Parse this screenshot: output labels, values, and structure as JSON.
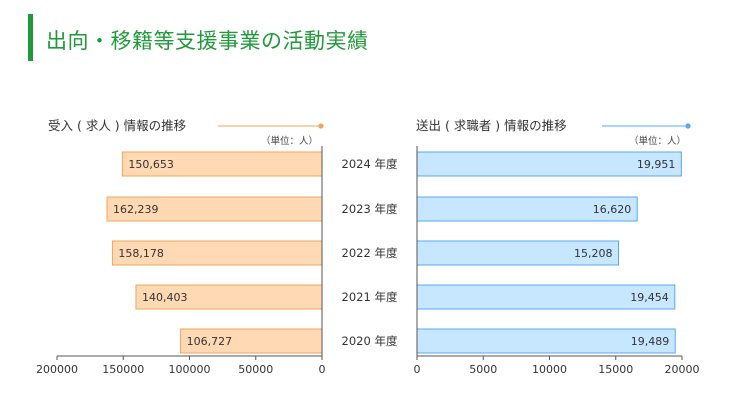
{
  "page": {
    "title": "出向・移籍等支援事業の活動実績"
  },
  "colors": {
    "accent_green": "#1f9a3b",
    "left_fill": "#ffd9b3",
    "left_stroke": "#f0a55a",
    "right_fill": "#c7e6ff",
    "right_stroke": "#5aa8f0"
  },
  "chart_data": [
    {
      "type": "bar",
      "orientation": "horizontal",
      "direction": "right-to-left",
      "title": "受入 ( 求人 ) 情報の推移",
      "unit_label": "（単位：人）",
      "categories": [
        "2024 年度",
        "2023 年度",
        "2022 年度",
        "2021 年度",
        "2020 年度"
      ],
      "values": [
        150653,
        162239,
        158178,
        140403,
        106727
      ],
      "value_labels": [
        "150,653",
        "162,239",
        "158,178",
        "140,403",
        "106,727"
      ],
      "xlim": [
        0,
        200000
      ],
      "ticks": [
        "200000",
        "150000",
        "100000",
        "50000",
        "0"
      ],
      "tick_values": [
        200000,
        150000,
        100000,
        50000,
        0
      ],
      "grid": false,
      "legend": "none"
    },
    {
      "type": "bar",
      "orientation": "horizontal",
      "direction": "left-to-right",
      "title": "送出 ( 求職者 ) 情報の推移",
      "unit_label": "（単位：人）",
      "categories": [
        "2024 年度",
        "2023 年度",
        "2022 年度",
        "2021 年度",
        "2020 年度"
      ],
      "values": [
        19951,
        16620,
        15208,
        19454,
        19489
      ],
      "value_labels": [
        "19,951",
        "16,620",
        "15,208",
        "19,454",
        "19,489"
      ],
      "xlim": [
        0,
        20000
      ],
      "ticks": [
        "0",
        "5000",
        "10000",
        "15000",
        "20000"
      ],
      "tick_values": [
        0,
        5000,
        10000,
        15000,
        20000
      ],
      "grid": false,
      "legend": "none"
    }
  ]
}
